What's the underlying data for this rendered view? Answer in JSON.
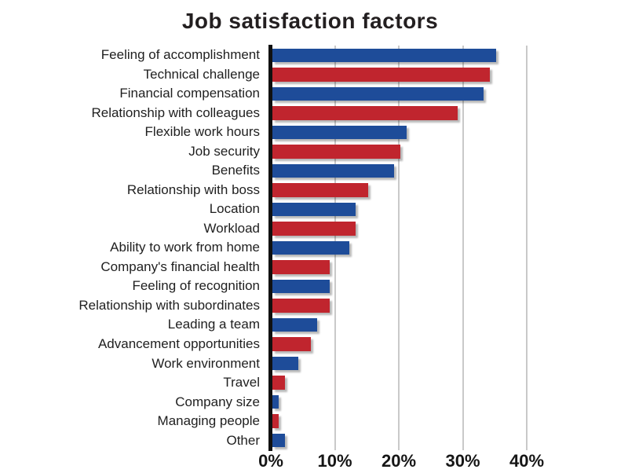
{
  "page": {
    "background": "#ffffff"
  },
  "chart_data": {
    "type": "bar",
    "orientation": "horizontal",
    "title": "Job satisfaction factors",
    "categories": [
      "Feeling of accomplishment",
      "Technical challenge",
      "Financial compensation",
      "Relationship with colleagues",
      "Flexible work hours",
      "Job security",
      "Benefits",
      "Relationship with boss",
      "Location",
      "Workload",
      "Ability to work from home",
      "Company's financial health",
      "Feeling of recognition",
      "Relationship with subordinates",
      "Leading a team",
      "Advancement opportunities",
      "Work environment",
      "Travel",
      "Company size",
      "Managing people",
      "Other"
    ],
    "values": [
      35,
      34,
      33,
      29,
      21,
      20,
      19,
      15,
      13,
      13,
      12,
      9,
      9,
      9,
      7,
      6,
      4,
      2,
      1,
      1,
      2
    ],
    "value_unit": "%",
    "x_tick_labels": [
      "0%",
      "10%",
      "20%",
      "30%",
      "40%"
    ],
    "x_tick_values": [
      0,
      10,
      20,
      30,
      40
    ],
    "xlim": [
      0,
      50
    ],
    "grid": "vertical",
    "legend": "none",
    "bar_color_pattern": [
      "#1E4C99",
      "#C0252E"
    ],
    "axis_color": "#111111",
    "gridline_color": "#c9c9c9",
    "label_color": "#1f1f1f"
  }
}
